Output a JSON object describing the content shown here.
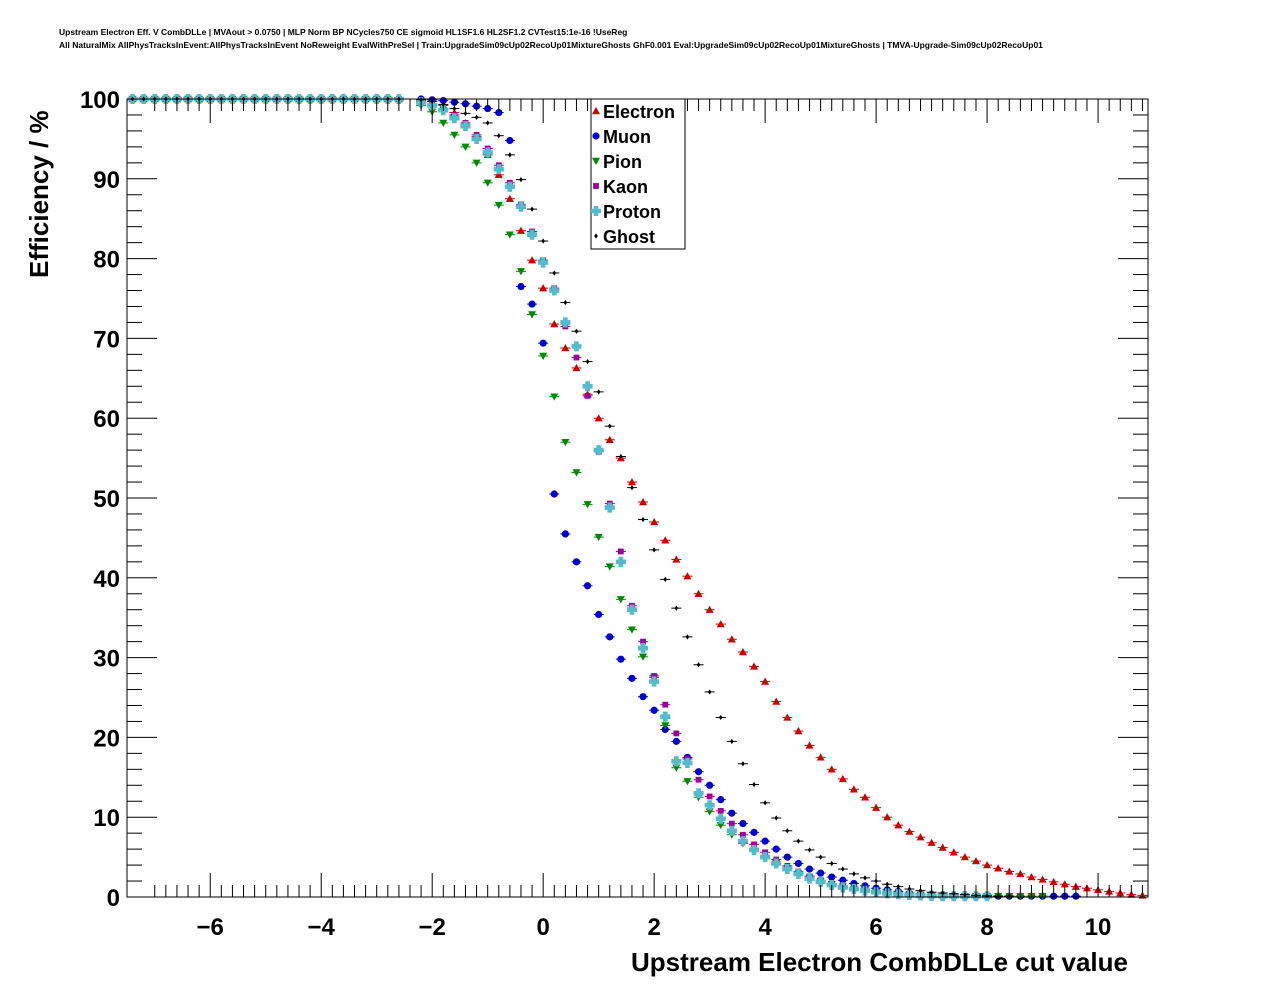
{
  "header": {
    "title_line1": "Upstream Electron Eff. V CombDLLe | MVAout > 0.0750 | MLP Norm BP NCycles750 CE sigmoid HL1SF1.6 HL2SF1.2 CVTest15:1e-16 !UseReg",
    "title_line2": "All NaturalMix AllPhysTracksInEvent:AllPhysTracksInEvent NoReweight EvalWithPreSel | Train:UpgradeSim09cUp02RecoUp01MixtureGhosts GhF0.001 Eval:UpgradeSim09cUp02RecoUp01MixtureGhosts | TMVA-Upgrade-Sim09cUp02RecoUp01"
  },
  "chart_data": {
    "type": "scatter",
    "xlabel": "Upstream Electron CombDLLe cut value",
    "ylabel": "Efficiency / %",
    "xlim": [
      -7.5,
      10.9
    ],
    "ylim": [
      0,
      100
    ],
    "xticks": [
      -6,
      -4,
      -2,
      0,
      2,
      4,
      6,
      8,
      10
    ],
    "xtick_labels": [
      "−6",
      "−4",
      "−2",
      "0",
      "2",
      "4",
      "6",
      "8",
      "10"
    ],
    "yticks": [
      0,
      10,
      20,
      30,
      40,
      50,
      60,
      70,
      80,
      90,
      100
    ],
    "ytick_labels": [
      "0",
      "10",
      "20",
      "30",
      "40",
      "50",
      "60",
      "70",
      "80",
      "90",
      "100"
    ],
    "grid": false,
    "legend_position": "top-center",
    "series": [
      {
        "name": "Electron",
        "color": "#cc0000",
        "marker": "triangle-up",
        "x": [
          -7.4,
          -5.0,
          -2.6,
          -2.2,
          -2.0,
          -1.8,
          -1.6,
          -1.4,
          -1.2,
          -1.0,
          -0.8,
          -0.6,
          -0.4,
          -0.2,
          0.0,
          0.2,
          0.4,
          0.6,
          0.8,
          1.0,
          1.2,
          1.4,
          1.6,
          1.8,
          2.0,
          2.2,
          2.4,
          2.6,
          2.8,
          3.0,
          3.2,
          3.4,
          3.6,
          3.8,
          4.0,
          4.2,
          4.4,
          4.6,
          4.8,
          5.0,
          5.2,
          5.4,
          5.6,
          5.8,
          6.0,
          6.2,
          6.4,
          6.6,
          6.8,
          7.0,
          7.2,
          7.4,
          7.6,
          7.8,
          8.0,
          8.2,
          8.4,
          8.6,
          8.8,
          9.0,
          9.2,
          9.4,
          9.6,
          9.8,
          10.0,
          10.2,
          10.4,
          10.6,
          10.8
        ],
        "y": [
          100,
          100,
          100,
          99.9,
          99.7,
          99.2,
          98.3,
          97.0,
          95.3,
          93.0,
          90.5,
          87.5,
          83.5,
          79.8,
          76.3,
          71.8,
          68.8,
          66.3,
          63.0,
          60.0,
          57.3,
          55.0,
          52.0,
          49.5,
          47.0,
          44.7,
          42.3,
          40.2,
          38.0,
          36.0,
          34.2,
          32.3,
          30.7,
          28.9,
          27.0,
          24.5,
          22.5,
          20.8,
          19.0,
          17.5,
          16.0,
          14.8,
          13.5,
          12.5,
          11.2,
          10.0,
          9.0,
          8.2,
          7.5,
          6.8,
          6.2,
          5.6,
          5.0,
          4.5,
          4.0,
          3.6,
          3.2,
          2.9,
          2.5,
          2.2,
          1.9,
          1.6,
          1.3,
          1.1,
          0.9,
          0.7,
          0.5,
          0.3,
          0.2
        ]
      },
      {
        "name": "Muon",
        "color": "#0000cc",
        "marker": "circle",
        "x": [
          -7.4,
          -5.0,
          -2.6,
          -2.2,
          -2.0,
          -1.8,
          -1.6,
          -1.4,
          -1.2,
          -1.0,
          -0.8,
          -0.6,
          -0.4,
          -0.2,
          0.0,
          0.2,
          0.4,
          0.6,
          0.8,
          1.0,
          1.2,
          1.4,
          1.6,
          1.8,
          2.0,
          2.2,
          2.4,
          2.6,
          2.8,
          3.0,
          3.2,
          3.4,
          3.6,
          3.8,
          4.0,
          4.2,
          4.4,
          4.6,
          4.8,
          5.0,
          5.2,
          5.4,
          5.6,
          5.8,
          6.0,
          6.2,
          6.4,
          6.6,
          6.8,
          7.0,
          7.2,
          7.4,
          7.6,
          7.8,
          8.0,
          8.2,
          8.4,
          8.6,
          8.8,
          9.0,
          9.2,
          9.4,
          9.6
        ],
        "y": [
          100,
          100,
          100,
          100,
          99.9,
          99.8,
          99.6,
          99.4,
          99.1,
          98.8,
          98.3,
          94.8,
          76.5,
          74.3,
          69.4,
          50.5,
          45.5,
          42.0,
          39.0,
          35.4,
          32.6,
          29.8,
          27.4,
          25.1,
          23.4,
          21.0,
          19.5,
          17.5,
          15.7,
          14.0,
          12.2,
          10.5,
          9.2,
          8.1,
          7.0,
          6.0,
          5.0,
          4.2,
          3.5,
          3.0,
          2.5,
          2.1,
          1.7,
          1.4,
          1.1,
          0.9,
          0.7,
          0.5,
          0.4,
          0.3,
          0.2,
          0.15,
          0.1,
          0.1,
          0.1,
          0.1,
          0.1,
          0.1,
          0.1,
          0.1,
          0.1,
          0.1,
          0.1
        ]
      },
      {
        "name": "Pion",
        "color": "#008800",
        "marker": "triangle-down",
        "x": [
          -7.4,
          -5.0,
          -2.6,
          -2.2,
          -2.0,
          -1.8,
          -1.6,
          -1.4,
          -1.2,
          -1.0,
          -0.8,
          -0.6,
          -0.4,
          -0.2,
          0.0,
          0.2,
          0.4,
          0.6,
          0.8,
          1.0,
          1.2,
          1.4,
          1.6,
          1.8,
          2.0,
          2.2,
          2.4,
          2.6,
          2.8,
          3.0,
          3.2,
          3.4,
          3.6,
          3.8,
          4.0,
          4.2,
          4.4,
          4.6,
          4.8,
          5.0,
          5.2,
          5.4,
          5.6,
          5.8,
          6.0,
          6.2,
          6.4,
          6.6,
          6.8,
          7.0,
          7.2,
          7.4,
          7.6,
          7.8,
          8.0,
          8.2,
          8.4,
          8.6,
          8.8,
          9.0
        ],
        "y": [
          100,
          100,
          99.8,
          99.2,
          98.4,
          97.0,
          95.5,
          94.0,
          92.0,
          89.5,
          86.7,
          83.0,
          78.4,
          73.0,
          67.8,
          62.7,
          57.0,
          53.2,
          49.2,
          45.1,
          41.4,
          37.3,
          33.5,
          30.1,
          27.5,
          21.5,
          16.2,
          14.5,
          12.5,
          10.7,
          9.0,
          7.8,
          6.7,
          5.8,
          4.9,
          4.2,
          3.5,
          2.9,
          2.4,
          2.0,
          1.6,
          1.3,
          1.0,
          0.8,
          0.6,
          0.5,
          0.4,
          0.3,
          0.2,
          0.15,
          0.1,
          0.1,
          0.1,
          0.1,
          0.1,
          0.1,
          0.1,
          0.1,
          0.1,
          0.1
        ]
      },
      {
        "name": "Kaon",
        "color": "#990099",
        "marker": "square",
        "x": [
          -7.4,
          -5.0,
          -2.6,
          -2.2,
          -2.0,
          -1.8,
          -1.6,
          -1.4,
          -1.2,
          -1.0,
          -0.8,
          -0.6,
          -0.4,
          -0.2,
          0.0,
          0.2,
          0.4,
          0.6,
          0.8,
          1.0,
          1.2,
          1.4,
          1.6,
          1.8,
          2.0,
          2.2,
          2.4,
          2.6,
          2.8,
          3.0,
          3.2,
          3.4,
          3.6,
          3.8,
          4.0,
          4.2,
          4.4,
          4.6,
          4.8,
          5.0,
          5.2,
          5.4,
          5.6,
          5.8,
          6.0,
          6.2,
          6.4,
          6.6,
          6.8,
          7.0,
          7.2,
          7.4,
          7.6,
          7.8,
          8.0
        ],
        "y": [
          100,
          100,
          100,
          99.7,
          99.3,
          98.8,
          98.0,
          97.0,
          95.5,
          93.8,
          91.7,
          89.5,
          86.8,
          83.4,
          79.8,
          76.3,
          71.5,
          67.6,
          62.8,
          55.8,
          49.3,
          43.3,
          36.5,
          32.0,
          27.7,
          24.1,
          20.5,
          17.3,
          14.7,
          12.6,
          10.8,
          9.2,
          7.8,
          6.6,
          5.6,
          4.7,
          3.9,
          3.2,
          2.6,
          2.1,
          1.7,
          1.4,
          1.1,
          0.9,
          0.7,
          0.5,
          0.4,
          0.3,
          0.2,
          0.15,
          0.1,
          0.1,
          0.1,
          0.1,
          0.1
        ]
      },
      {
        "name": "Proton",
        "color": "#55bbcc",
        "marker": "cross",
        "x": [
          -7.4,
          -5.0,
          -2.6,
          -2.2,
          -2.0,
          -1.8,
          -1.6,
          -1.4,
          -1.2,
          -1.0,
          -0.8,
          -0.6,
          -0.4,
          -0.2,
          0.0,
          0.2,
          0.4,
          0.6,
          0.8,
          1.0,
          1.2,
          1.4,
          1.6,
          1.8,
          2.0,
          2.2,
          2.4,
          2.6,
          2.8,
          3.0,
          3.2,
          3.4,
          3.6,
          3.8,
          4.0,
          4.2,
          4.4,
          4.6,
          4.8,
          5.0,
          5.2,
          5.4,
          5.6,
          5.8,
          6.0,
          6.2,
          6.4,
          6.6,
          6.8,
          7.0,
          7.2,
          7.4,
          7.6,
          7.8,
          8.0
        ],
        "y": [
          100,
          100,
          100,
          99.6,
          99.2,
          98.6,
          97.6,
          96.6,
          95.0,
          93.3,
          91.2,
          89.0,
          86.5,
          83.0,
          79.5,
          76.0,
          72.0,
          69.0,
          64.0,
          56.0,
          48.8,
          42.0,
          36.0,
          31.2,
          27.0,
          22.6,
          17.0,
          16.8,
          13.0,
          11.5,
          9.8,
          8.3,
          7.0,
          5.9,
          5.0,
          4.2,
          3.5,
          2.9,
          2.3,
          1.9,
          1.5,
          1.2,
          1.0,
          0.8,
          0.6,
          0.45,
          0.35,
          0.25,
          0.2,
          0.15,
          0.1,
          0.1,
          0.1,
          0.1,
          0.1
        ]
      },
      {
        "name": "Ghost",
        "color": "#000000",
        "marker": "diamond",
        "x": [
          -7.4,
          -5.0,
          -2.6,
          -2.2,
          -2.0,
          -1.8,
          -1.6,
          -1.4,
          -1.2,
          -1.0,
          -0.8,
          -0.6,
          -0.4,
          -0.2,
          0.0,
          0.2,
          0.4,
          0.6,
          0.8,
          1.0,
          1.2,
          1.4,
          1.6,
          1.8,
          2.0,
          2.2,
          2.4,
          2.6,
          2.8,
          3.0,
          3.2,
          3.4,
          3.6,
          3.8,
          4.0,
          4.2,
          4.4,
          4.6,
          4.8,
          5.0,
          5.2,
          5.4,
          5.6,
          5.8,
          6.0,
          6.2,
          6.4,
          6.6,
          6.8,
          7.0,
          7.2,
          7.4,
          7.6,
          7.8,
          8.0,
          8.2,
          8.4
        ],
        "y": [
          100,
          100,
          100,
          99.9,
          99.7,
          99.3,
          98.8,
          98.2,
          97.7,
          97.0,
          95.4,
          93.0,
          89.9,
          86.2,
          82.2,
          78.2,
          74.5,
          70.9,
          67.1,
          63.3,
          59.0,
          55.2,
          51.3,
          47.3,
          43.5,
          39.8,
          36.2,
          32.6,
          29.1,
          25.7,
          22.5,
          19.5,
          16.7,
          14.1,
          11.8,
          9.9,
          8.3,
          7.0,
          5.9,
          5.0,
          4.2,
          3.5,
          2.9,
          2.4,
          2.0,
          1.6,
          1.3,
          1.0,
          0.8,
          0.6,
          0.5,
          0.4,
          0.3,
          0.2,
          0.15,
          0.1,
          0.1
        ]
      }
    ]
  }
}
